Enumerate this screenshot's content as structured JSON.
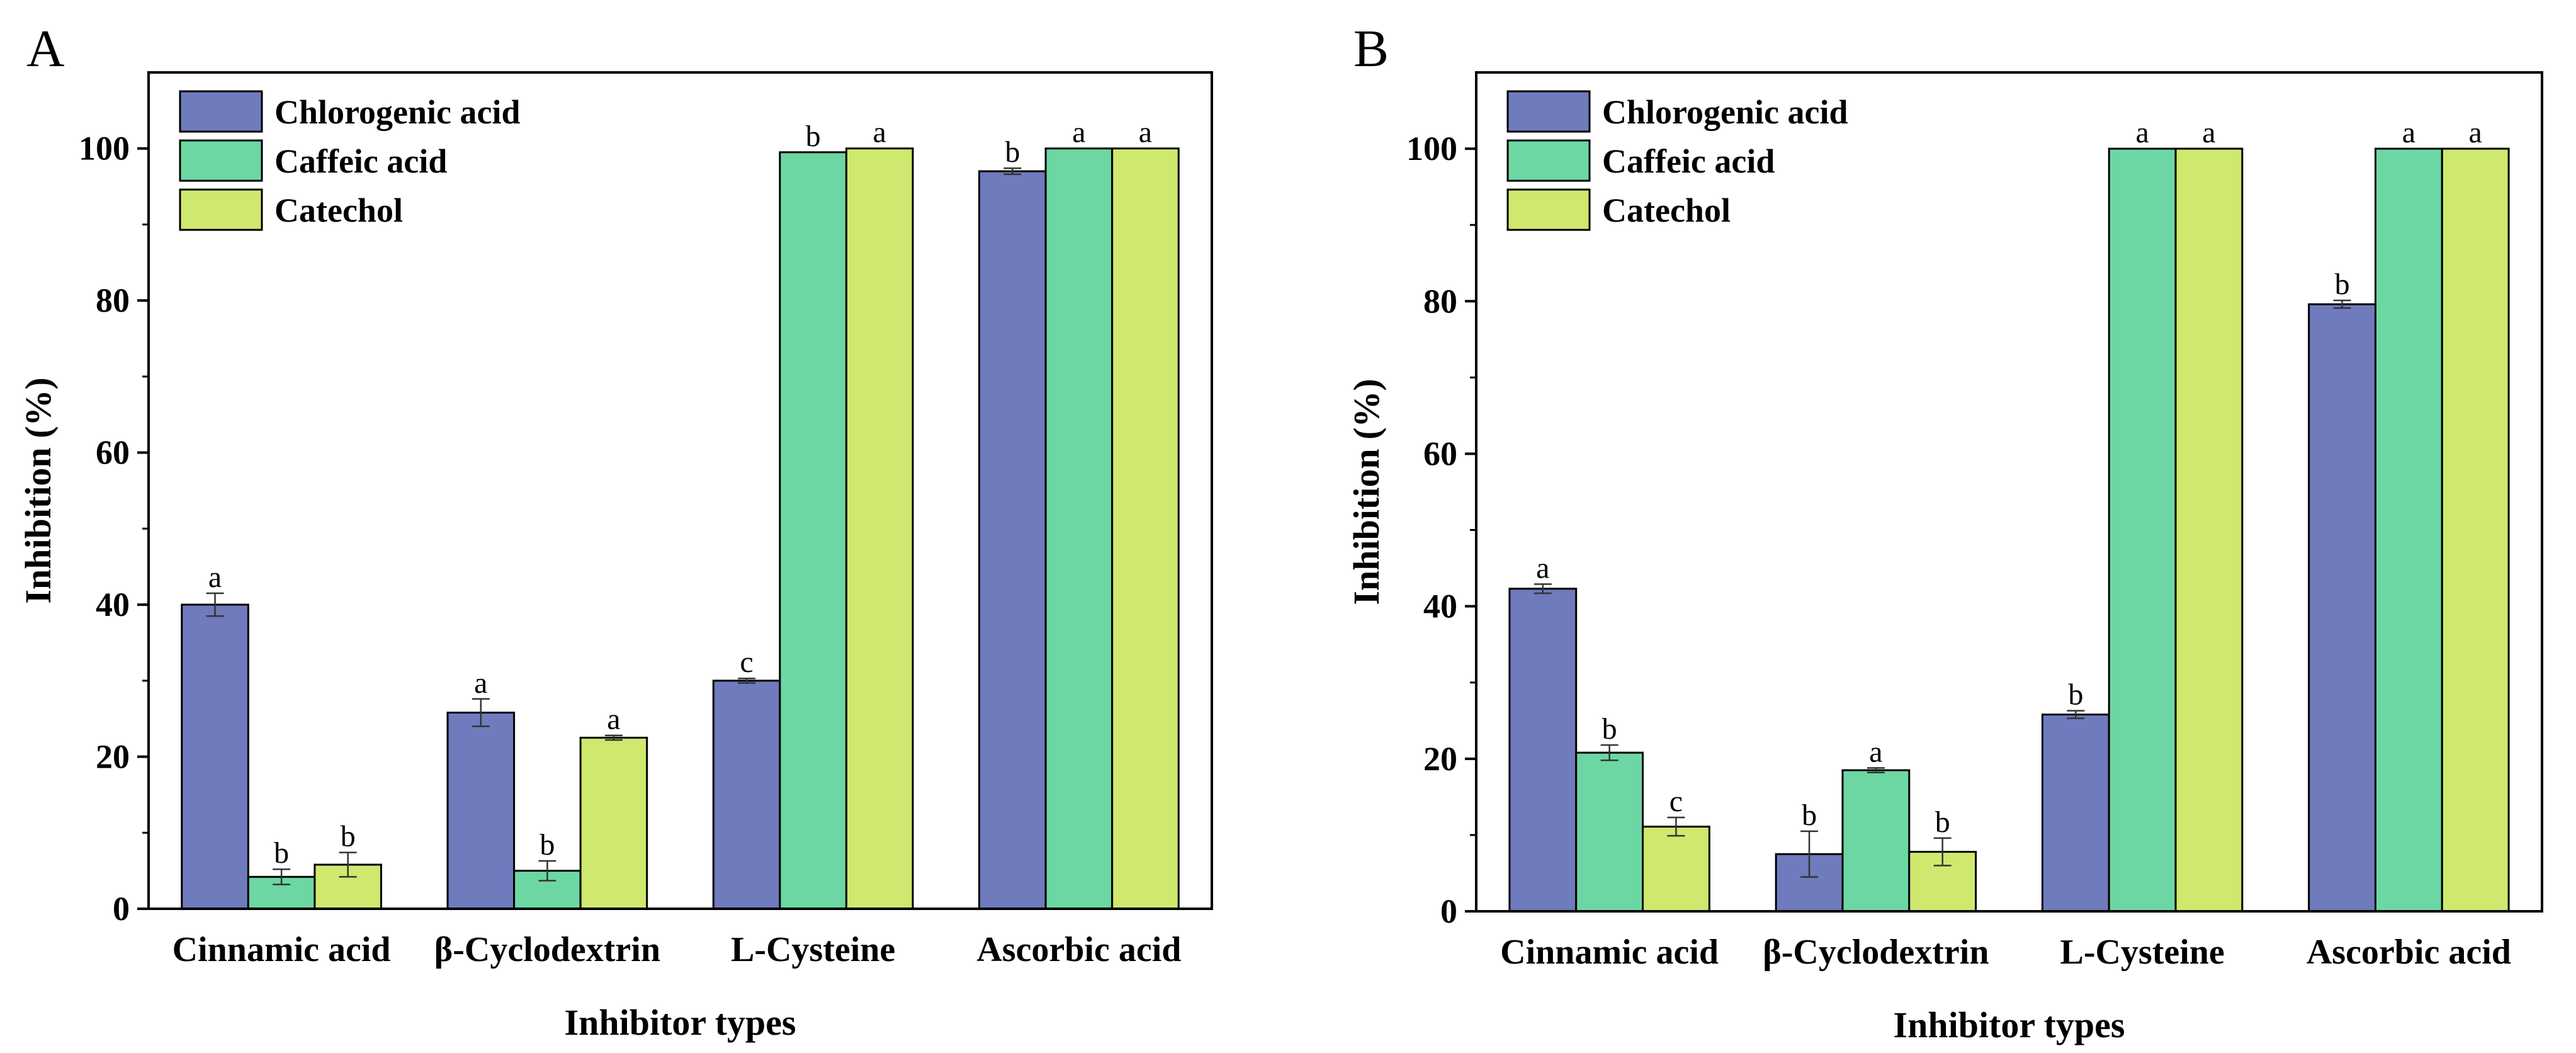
{
  "chart_data": [
    {
      "panel": "A",
      "type": "bar",
      "xlabel": "Inhibitor types",
      "ylabel": "Inhibition (%)",
      "ylim": [
        0,
        110
      ],
      "yticks": [
        0,
        20,
        40,
        60,
        80,
        100
      ],
      "legend_position": "top-left",
      "categories": [
        "Cinnamic acid",
        "β-Cyclodextrin",
        "L-Cysteine",
        "Ascorbic acid"
      ],
      "series": [
        {
          "name": "Chlorogenic acid",
          "color": "#6f7bbd",
          "values": [
            40,
            25.8,
            30,
            97
          ],
          "errors": [
            1.5,
            1.8,
            0.3,
            0.4
          ],
          "letters": [
            "a",
            "a",
            "c",
            "b"
          ]
        },
        {
          "name": "Caffeic acid",
          "color": "#6dd7a3",
          "values": [
            4.2,
            5,
            99.5,
            100
          ],
          "errors": [
            1,
            1.3,
            0,
            0
          ],
          "letters": [
            "b",
            "b",
            "b",
            "a"
          ]
        },
        {
          "name": "Catechol",
          "color": "#cfe86e",
          "values": [
            5.8,
            22.5,
            100,
            100
          ],
          "errors": [
            1.6,
            0.3,
            0,
            0
          ],
          "letters": [
            "b",
            "a",
            "a",
            "a"
          ]
        }
      ]
    },
    {
      "panel": "B",
      "type": "bar",
      "xlabel": "Inhibitor types",
      "ylabel": "Inhibition (%)",
      "ylim": [
        0,
        110
      ],
      "yticks": [
        0,
        20,
        40,
        60,
        80,
        100
      ],
      "legend_position": "top-left",
      "categories": [
        "Cinnamic acid",
        "β-Cyclodextrin",
        "L-Cysteine",
        "Ascorbic acid"
      ],
      "series": [
        {
          "name": "Chlorogenic acid",
          "color": "#6f7bbd",
          "values": [
            42.3,
            7.5,
            25.8,
            79.6
          ],
          "errors": [
            0.6,
            3,
            0.5,
            0.5
          ],
          "letters": [
            "a",
            "b",
            "b",
            "b"
          ]
        },
        {
          "name": "Caffeic acid",
          "color": "#6dd7a3",
          "values": [
            20.8,
            18.5,
            100,
            100
          ],
          "errors": [
            1,
            0.3,
            0,
            0
          ],
          "letters": [
            "b",
            "a",
            "a",
            "a"
          ]
        },
        {
          "name": "Catechol",
          "color": "#cfe86e",
          "values": [
            11.1,
            7.8,
            100,
            100
          ],
          "errors": [
            1.2,
            1.8,
            0,
            0
          ],
          "letters": [
            "c",
            "b",
            "a",
            "a"
          ]
        }
      ]
    }
  ]
}
